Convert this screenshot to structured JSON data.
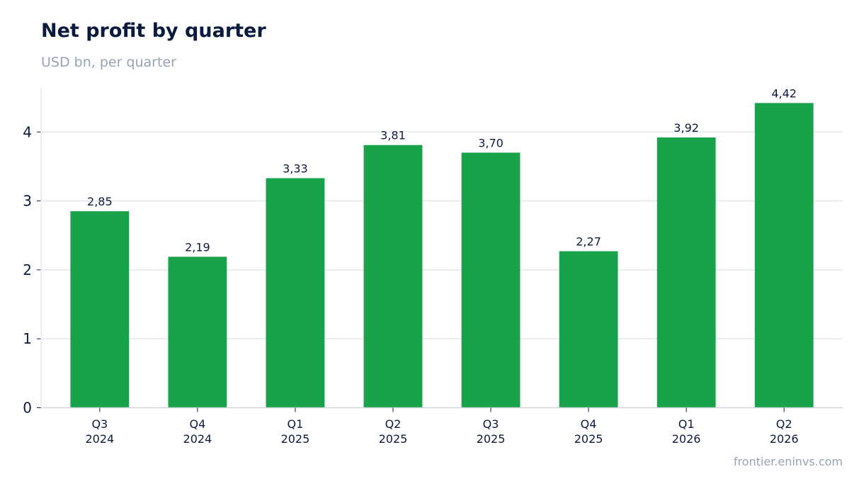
{
  "chart_data": {
    "type": "bar",
    "title": "Net profit by quarter",
    "subtitle": "USD bn, per quarter",
    "categories": [
      [
        "Q3",
        "2024"
      ],
      [
        "Q4",
        "2024"
      ],
      [
        "Q1",
        "2025"
      ],
      [
        "Q2",
        "2025"
      ],
      [
        "Q3",
        "2025"
      ],
      [
        "Q4",
        "2025"
      ],
      [
        "Q1",
        "2026"
      ],
      [
        "Q2",
        "2026"
      ]
    ],
    "values": [
      2.85,
      2.19,
      3.33,
      3.81,
      3.7,
      2.27,
      3.92,
      4.42
    ],
    "value_labels": [
      "2,85",
      "2,19",
      "3,33",
      "3,81",
      "3,70",
      "2,27",
      "3,92",
      "4,42"
    ],
    "yticks": [
      0,
      1,
      2,
      3,
      4
    ],
    "ylim": [
      0,
      4.65
    ],
    "grid": true,
    "bar_color": "#18a34a",
    "grid_color": "#e3e8ee",
    "axis_color": "#cfd5dd"
  },
  "source": "frontier.eninvs.com"
}
